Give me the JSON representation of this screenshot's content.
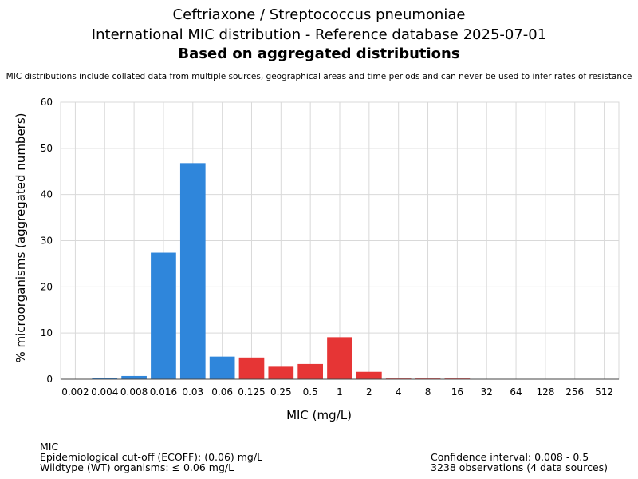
{
  "header": {
    "title_line1": "Ceftriaxone / Streptococcus pneumoniae",
    "title_line2": "International MIC distribution - Reference database 2025-07-01",
    "title_line3": "Based on aggregated distributions",
    "subtitle": "MIC distributions include collated data from multiple sources, geographical areas and time periods and can never be used to infer rates of resistance"
  },
  "footer": {
    "left_line1": "MIC",
    "left_line2": "Epidemiological cut-off (ECOFF): (0.06) mg/L",
    "left_line3": "Wildtype (WT) organisms: ≤ 0.06 mg/L",
    "right_line1": "Confidence interval: 0.008 - 0.5",
    "right_line2": "3238 observations (4 data sources)"
  },
  "colors": {
    "wildtype": "#2f86db",
    "non_wildtype": "#e63535",
    "grid": "#d9d9d9"
  },
  "chart_data": {
    "type": "bar",
    "xlabel": "MIC (mg/L)",
    "ylabel": "% microorganisms (aggregated numbers)",
    "ylim": [
      0,
      60
    ],
    "yticks": [
      "0",
      "10",
      "20",
      "30",
      "40",
      "50",
      "60"
    ],
    "grid": true,
    "categories": [
      "0.002",
      "0.004",
      "0.008",
      "0.016",
      "0.03",
      "0.06",
      "0.125",
      "0.25",
      "0.5",
      "1",
      "2",
      "4",
      "8",
      "16",
      "32",
      "64",
      "128",
      "256",
      "512"
    ],
    "values": [
      0,
      0.2,
      0.7,
      27.4,
      46.8,
      4.9,
      4.7,
      2.7,
      3.3,
      9.1,
      1.6,
      0.15,
      0.15,
      0.15,
      0,
      0,
      0,
      0,
      0
    ],
    "bar_group": [
      "wildtype",
      "wildtype",
      "wildtype",
      "wildtype",
      "wildtype",
      "wildtype",
      "non_wildtype",
      "non_wildtype",
      "non_wildtype",
      "non_wildtype",
      "non_wildtype",
      "non_wildtype",
      "non_wildtype",
      "non_wildtype",
      "non_wildtype",
      "non_wildtype",
      "non_wildtype",
      "non_wildtype",
      "non_wildtype"
    ]
  }
}
